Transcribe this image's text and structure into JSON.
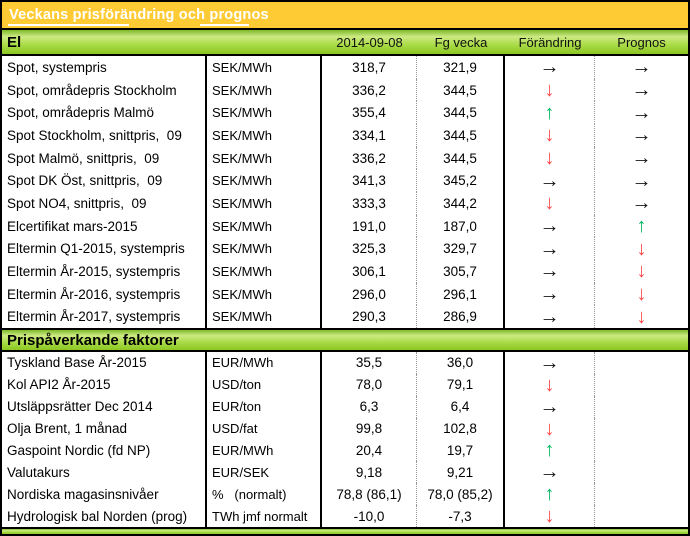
{
  "title": "Veckans prisförändring och prognos",
  "columns": {
    "date": "2014-09-08",
    "prev": "Fg vecka",
    "change": "Förändring",
    "forecast": "Prognos"
  },
  "arrows": {
    "right": "→",
    "up": "↑",
    "down": "↓"
  },
  "colors": {
    "header_orange": "#FFCB35",
    "section_green": "#9AD32F",
    "arrow_up_green": "#00B860",
    "arrow_down_red": "#FF4747",
    "arrow_neutral_black": "#141414"
  },
  "sections": [
    {
      "name": "El",
      "rows": [
        {
          "label": "Spot, systempris",
          "unit": "SEK/MWh",
          "current": "318,7",
          "previous": "321,9",
          "change": "right",
          "forecast": "right"
        },
        {
          "label": "Spot, områdepris Stockholm",
          "unit": "SEK/MWh",
          "current": "336,2",
          "previous": "344,5",
          "change": "down",
          "forecast": "right"
        },
        {
          "label": "Spot, områdepris Malmö",
          "unit": "SEK/MWh",
          "current": "355,4",
          "previous": "344,5",
          "change": "up",
          "forecast": "right"
        },
        {
          "label": "Spot Stockholm, snittpris,  09",
          "unit": "SEK/MWh",
          "current": "334,1",
          "previous": "344,5",
          "change": "down",
          "forecast": "right"
        },
        {
          "label": "Spot Malmö, snittpris,  09",
          "unit": "SEK/MWh",
          "current": "336,2",
          "previous": "344,5",
          "change": "down",
          "forecast": "right"
        },
        {
          "label": "Spot DK Öst, snittpris,  09",
          "unit": "SEK/MWh",
          "current": "341,3",
          "previous": "345,2",
          "change": "right",
          "forecast": "right"
        },
        {
          "label": "Spot NO4, snittpris,  09",
          "unit": "SEK/MWh",
          "current": "333,3",
          "previous": "344,2",
          "change": "down",
          "forecast": "right"
        },
        {
          "label": "Elcertifikat mars-2015",
          "unit": "SEK/MWh",
          "current": "191,0",
          "previous": "187,0",
          "change": "right",
          "forecast": "up"
        },
        {
          "label": "Eltermin Q1-2015, systempris",
          "unit": "SEK/MWh",
          "current": "325,3",
          "previous": "329,7",
          "change": "right",
          "forecast": "down"
        },
        {
          "label": "Eltermin År-2015, systempris",
          "unit": "SEK/MWh",
          "current": "306,1",
          "previous": "305,7",
          "change": "right",
          "forecast": "down"
        },
        {
          "label": "Eltermin År-2016, systempris",
          "unit": "SEK/MWh",
          "current": "296,0",
          "previous": "296,1",
          "change": "right",
          "forecast": "down"
        },
        {
          "label": "Eltermin År-2017, systempris",
          "unit": "SEK/MWh",
          "current": "290,3",
          "previous": "286,9",
          "change": "right",
          "forecast": "down"
        }
      ]
    },
    {
      "name": "Prispåverkande faktorer",
      "rows": [
        {
          "label": "Tyskland Base År-2015",
          "unit": "EUR/MWh",
          "current": "35,5",
          "previous": "36,0",
          "change": "right",
          "forecast": ""
        },
        {
          "label": "Kol API2 År-2015",
          "unit": "USD/ton",
          "current": "78,0",
          "previous": "79,1",
          "change": "down",
          "forecast": ""
        },
        {
          "label": "Utsläppsrätter Dec 2014",
          "unit": "EUR/ton",
          "current": "6,3",
          "previous": "6,4",
          "change": "right",
          "forecast": ""
        },
        {
          "label": "Olja Brent, 1 månad",
          "unit": "USD/fat",
          "current": "99,8",
          "previous": "102,8",
          "change": "down",
          "forecast": ""
        },
        {
          "label": "Gaspoint Nordic (fd NP)",
          "unit": "EUR/MWh",
          "current": "20,4",
          "previous": "19,7",
          "change": "up",
          "forecast": ""
        },
        {
          "label": "Valutakurs",
          "unit": "EUR/SEK",
          "current": "9,18",
          "previous": "9,21",
          "change": "right",
          "forecast": ""
        },
        {
          "label": "Nordiska magasinsnivåer",
          "unit": "%   (normalt)",
          "current": "78,8 (86,1)",
          "previous": "78,0 (85,2)",
          "change": "up",
          "forecast": ""
        },
        {
          "label": "Hydrologisk bal Norden (prog)",
          "unit": "TWh jmf normalt",
          "current": "-10,0",
          "previous": "-7,3",
          "change": "down",
          "forecast": ""
        }
      ]
    }
  ]
}
